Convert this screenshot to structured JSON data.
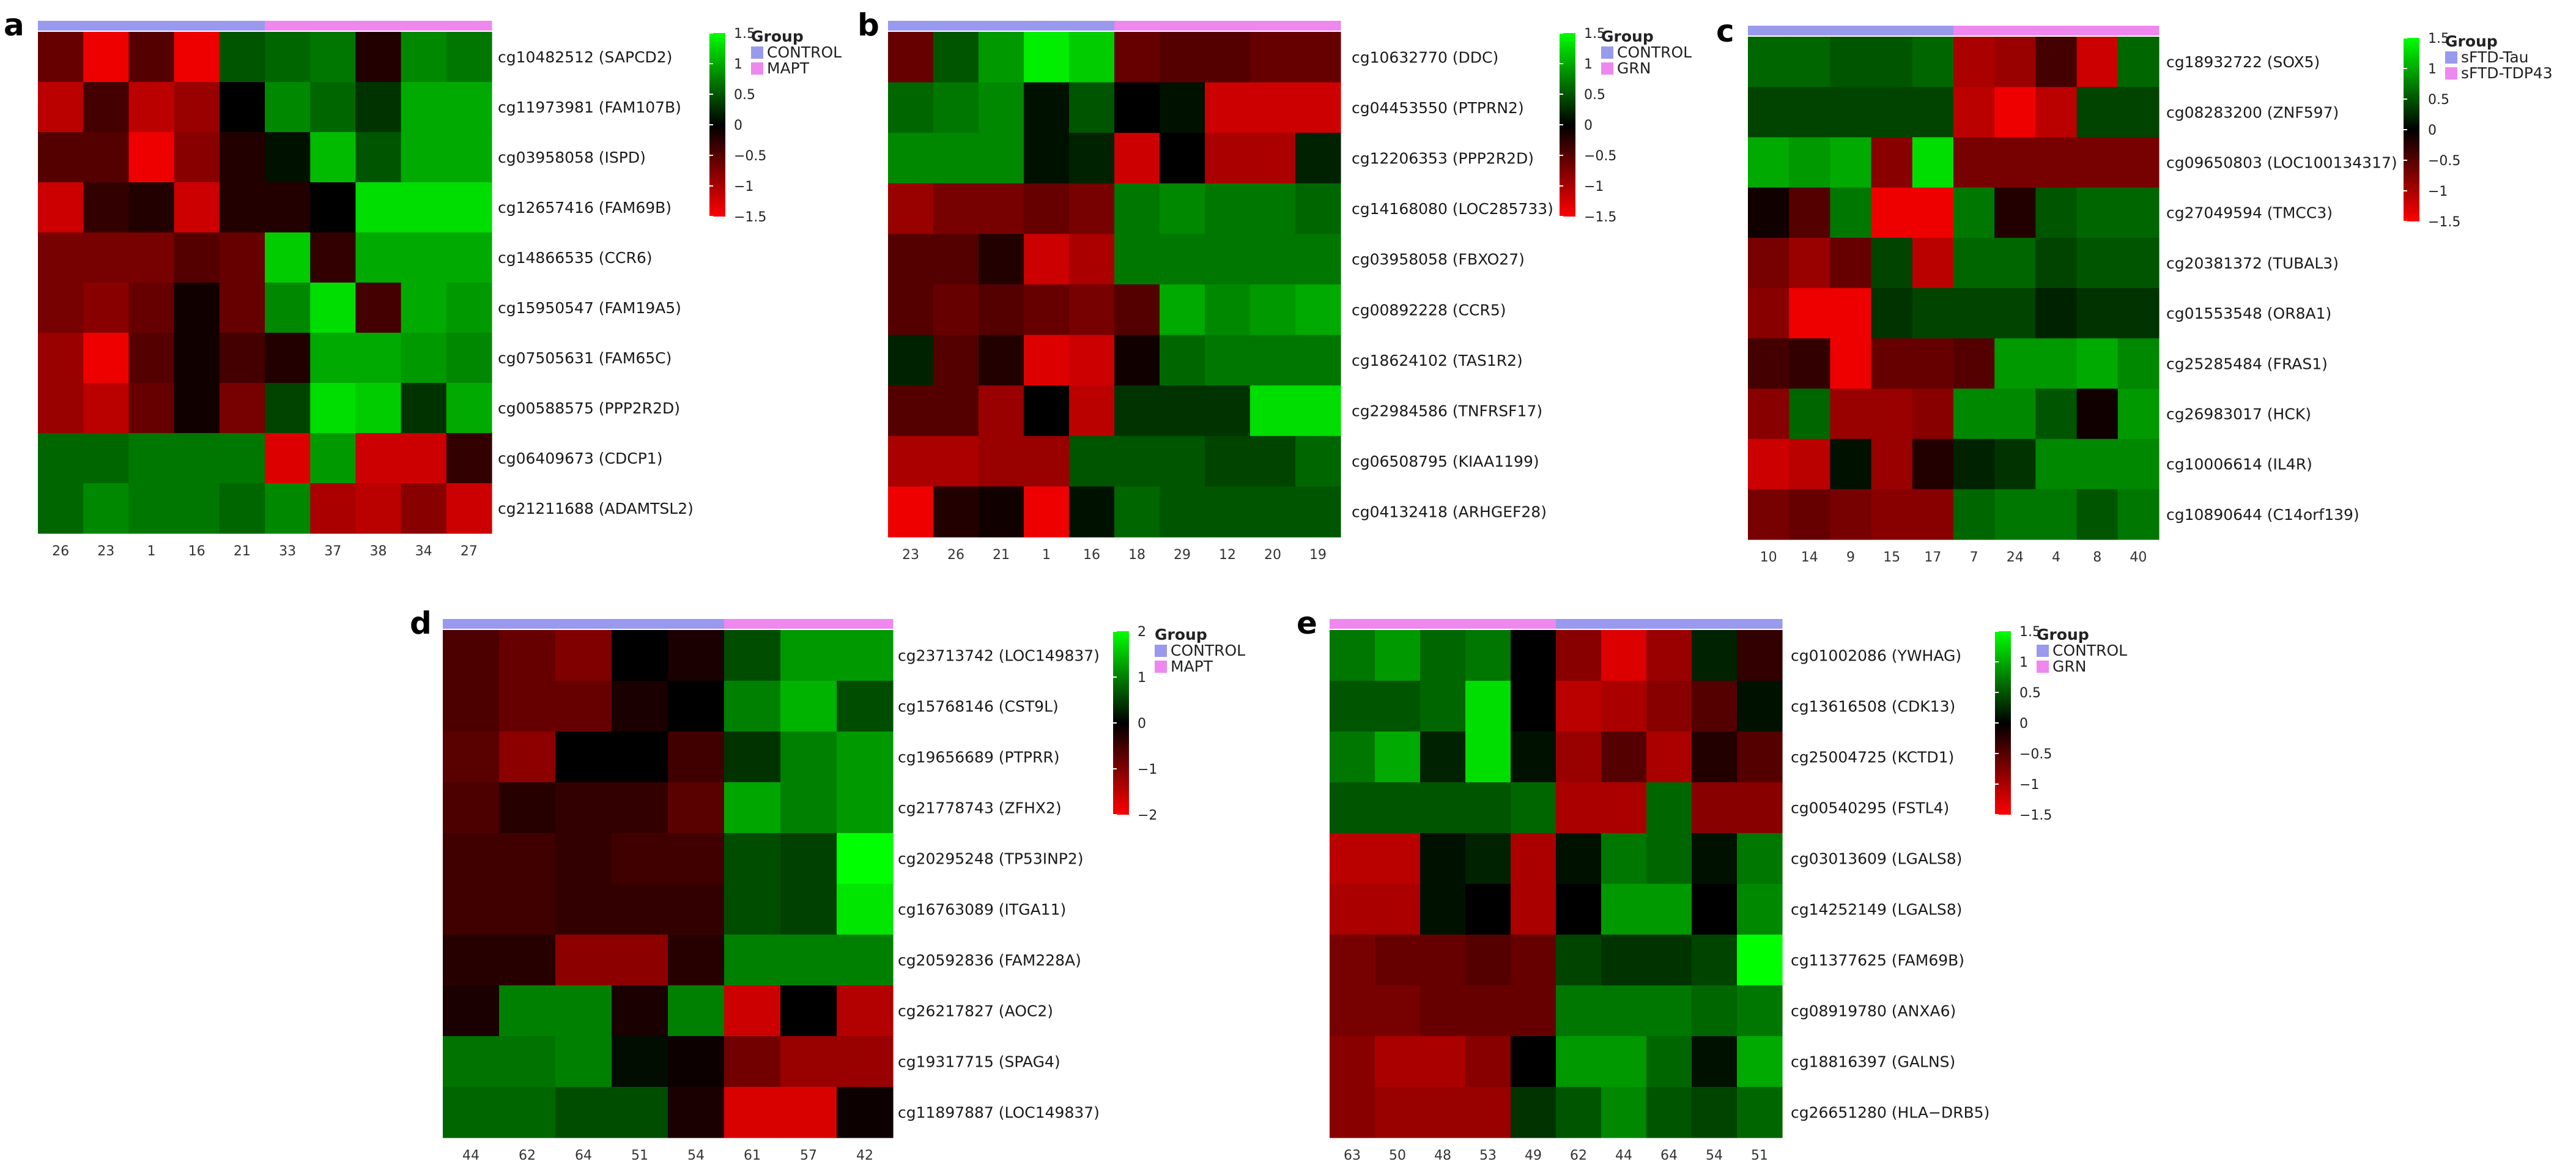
{
  "palette": {
    "low": "#ff0000",
    "mid": "#000000",
    "high": "#00ff00",
    "control": "#9999ee",
    "case": "#ee88ee"
  },
  "chart_data": [
    {
      "panel": "a",
      "type": "heatmap",
      "legend": {
        "title": "Group",
        "entries": [
          "CONTROL",
          "MAPT"
        ]
      },
      "colorbar": {
        "min": -1.5,
        "max": 1.5,
        "ticks": [
          "1.5",
          "1",
          "0.5",
          "0",
          "−0.5",
          "−1",
          "−1.5"
        ]
      },
      "columns": [
        "26",
        "23",
        "1",
        "16",
        "21",
        "33",
        "37",
        "38",
        "34",
        "27"
      ],
      "column_groups": [
        "CONTROL",
        "CONTROL",
        "CONTROL",
        "CONTROL",
        "CONTROL",
        "MAPT",
        "MAPT",
        "MAPT",
        "MAPT",
        "MAPT"
      ],
      "rows": [
        "cg10482512 (SAPCD2)",
        "cg11973981 (FAM107B)",
        "cg03958058 (ISPD)",
        "cg12657416 (FAM69B)",
        "cg14866535 (CCR6)",
        "cg15950547 (FAM19A5)",
        "cg07505631 (FAM65C)",
        "cg00588575 (PPP2R2D)",
        "cg06409673 (CDCP1)",
        "cg21211688 (ADAMTSL2)"
      ],
      "values": [
        [
          -0.6,
          -1.4,
          -0.5,
          -1.4,
          0.5,
          0.6,
          0.7,
          -0.2,
          0.8,
          0.7
        ],
        [
          -1.1,
          -0.4,
          -1.1,
          -0.9,
          0,
          0.8,
          0.6,
          0.3,
          1.0,
          1.0
        ],
        [
          -0.5,
          -0.5,
          -1.4,
          -0.8,
          -0.2,
          0.1,
          1.1,
          0.5,
          1.0,
          1.0
        ],
        [
          -1.2,
          -0.3,
          -0.2,
          -1.2,
          -0.2,
          -0.2,
          0,
          1.3,
          1.3,
          1.3
        ],
        [
          -0.7,
          -0.7,
          -0.7,
          -0.5,
          -0.6,
          1.2,
          -0.3,
          1.0,
          1.0,
          1.0
        ],
        [
          -0.7,
          -0.8,
          -0.6,
          -0.1,
          -0.6,
          0.8,
          1.3,
          -0.4,
          1.0,
          0.9
        ],
        [
          -0.9,
          -1.4,
          -0.5,
          -0.1,
          -0.4,
          -0.2,
          1.0,
          1.0,
          0.9,
          0.8
        ],
        [
          -0.9,
          -1.1,
          -0.6,
          -0.1,
          -0.7,
          0.4,
          1.3,
          1.2,
          0.3,
          1.0
        ],
        [
          0.6,
          0.6,
          0.7,
          0.7,
          0.7,
          -1.3,
          0.9,
          -1.2,
          -1.2,
          -0.3
        ],
        [
          0.6,
          0.8,
          0.7,
          0.7,
          0.6,
          0.8,
          -1.0,
          -1.1,
          -0.8,
          -1.2
        ]
      ]
    },
    {
      "panel": "b",
      "type": "heatmap",
      "legend": {
        "title": "Group",
        "entries": [
          "CONTROL",
          "GRN"
        ]
      },
      "colorbar": {
        "min": -1.5,
        "max": 1.5,
        "ticks": [
          "1.5",
          "1",
          "0.5",
          "0",
          "−0.5",
          "−1",
          "−1.5"
        ]
      },
      "columns": [
        "23",
        "26",
        "21",
        "1",
        "16",
        "18",
        "29",
        "12",
        "20",
        "19"
      ],
      "column_groups": [
        "CONTROL",
        "CONTROL",
        "CONTROL",
        "CONTROL",
        "CONTROL",
        "GRN",
        "GRN",
        "GRN",
        "GRN",
        "GRN"
      ],
      "rows": [
        "cg10632770 (DDC)",
        "cg04453550 (PTPRN2)",
        "cg12206353 (PPP2R2D)",
        "cg14168080 (LOC285733)",
        "cg03958058 (FBXO27)",
        "cg00892228 (CCR5)",
        "cg18624102 (TAS1R2)",
        "cg22984586 (TNFRSF17)",
        "cg06508795 (KIAA1199)",
        "cg04132418 (ARHGEF28)"
      ],
      "values": [
        [
          -0.6,
          0.5,
          0.9,
          1.4,
          1.2,
          -0.6,
          -0.5,
          -0.5,
          -0.6,
          -0.6
        ],
        [
          0.6,
          0.7,
          0.8,
          0.1,
          0.5,
          0,
          0.1,
          -1.2,
          -1.2,
          -1.2
        ],
        [
          0.8,
          0.8,
          0.8,
          0.1,
          0.2,
          -1.2,
          0,
          -1.0,
          -1.0,
          0.2
        ],
        [
          -0.9,
          -0.7,
          -0.7,
          -0.6,
          -0.7,
          0.7,
          0.8,
          0.7,
          0.7,
          0.6
        ],
        [
          -0.5,
          -0.5,
          -0.2,
          -1.2,
          -1.0,
          0.7,
          0.7,
          0.7,
          0.7,
          0.7
        ],
        [
          -0.5,
          -0.6,
          -0.5,
          -0.6,
          -0.7,
          -0.5,
          1.0,
          0.8,
          0.9,
          1.0
        ],
        [
          0.2,
          -0.5,
          -0.2,
          -1.3,
          -1.2,
          -0.1,
          0.6,
          0.7,
          0.7,
          0.7
        ],
        [
          -0.5,
          -0.5,
          -0.9,
          0,
          -1.1,
          0.3,
          0.3,
          0.3,
          1.3,
          1.3
        ],
        [
          -1.0,
          -1.0,
          -0.9,
          -0.9,
          0.5,
          0.5,
          0.5,
          0.4,
          0.4,
          0.6
        ],
        [
          -1.4,
          -0.2,
          -0.1,
          -1.4,
          0.1,
          0.6,
          0.5,
          0.5,
          0.5,
          0.5
        ]
      ]
    },
    {
      "panel": "c",
      "type": "heatmap",
      "legend": {
        "title": "Group",
        "entries": [
          "sFTD-Tau",
          "sFTD-TDP43"
        ]
      },
      "colorbar": {
        "min": -1.5,
        "max": 1.5,
        "ticks": [
          "1.5",
          "1",
          "0.5",
          "0",
          "−0.5",
          "−1",
          "−1.5"
        ]
      },
      "columns": [
        "10",
        "14",
        "9",
        "15",
        "17",
        "7",
        "24",
        "4",
        "8",
        "40"
      ],
      "column_groups": [
        "sFTD-Tau",
        "sFTD-Tau",
        "sFTD-Tau",
        "sFTD-Tau",
        "sFTD-Tau",
        "sFTD-TDP43",
        "sFTD-TDP43",
        "sFTD-TDP43",
        "sFTD-TDP43",
        "sFTD-TDP43"
      ],
      "rows": [
        "cg18932722 (SOX5)",
        "cg08283200 (ZNF597)",
        "cg09650803 (LOC100134317)",
        "cg27049594 (TMCC3)",
        "cg20381372 (TUBAL3)",
        "cg01553548 (OR8A1)",
        "cg25285484 (FRAS1)",
        "cg26983017 (HCK)",
        "cg10006614 (IL4R)",
        "cg10890644 (C14orf139)"
      ],
      "values": [
        [
          0.6,
          0.6,
          0.5,
          0.5,
          0.6,
          -1.0,
          -0.9,
          -0.4,
          -1.2,
          0.6
        ],
        [
          0.4,
          0.4,
          0.4,
          0.4,
          0.4,
          -1.1,
          -1.4,
          -1.1,
          0.4,
          0.4
        ],
        [
          1.0,
          0.9,
          1.0,
          -0.8,
          1.3,
          -0.7,
          -0.7,
          -0.7,
          -0.7,
          -0.7
        ],
        [
          -0.1,
          -0.5,
          0.7,
          -1.4,
          -1.4,
          0.7,
          -0.2,
          0.5,
          0.6,
          0.6
        ],
        [
          -0.7,
          -0.9,
          -0.6,
          0.4,
          -1.1,
          0.6,
          0.6,
          0.4,
          0.5,
          0.5
        ],
        [
          -0.8,
          -1.4,
          -1.4,
          0.3,
          0.4,
          0.4,
          0.4,
          0.2,
          0.3,
          0.3
        ],
        [
          -0.4,
          -0.3,
          -1.4,
          -0.6,
          -0.6,
          -0.5,
          0.9,
          0.9,
          1.0,
          0.8
        ],
        [
          -0.8,
          0.6,
          -0.9,
          -0.9,
          -0.8,
          0.8,
          0.8,
          0.5,
          -0.1,
          0.9
        ],
        [
          -1.2,
          -1.1,
          0.1,
          -0.9,
          -0.2,
          0.2,
          0.3,
          0.8,
          0.8,
          0.8
        ],
        [
          -0.7,
          -0.6,
          -0.7,
          -0.8,
          -0.8,
          0.6,
          0.7,
          0.7,
          0.5,
          0.7
        ]
      ]
    },
    {
      "panel": "d",
      "type": "heatmap",
      "legend": {
        "title": "Group",
        "entries": [
          "CONTROL",
          "MAPT"
        ]
      },
      "colorbar": {
        "min": -2,
        "max": 2,
        "ticks": [
          "2",
          "1",
          "0",
          "−1",
          "−2"
        ]
      },
      "columns": [
        "44",
        "62",
        "64",
        "51",
        "54",
        "61",
        "57",
        "42"
      ],
      "column_groups": [
        "CONTROL",
        "CONTROL",
        "CONTROL",
        "CONTROL",
        "CONTROL",
        "MAPT",
        "MAPT",
        "MAPT"
      ],
      "rows": [
        "cg23713742 (LOC149837)",
        "cg15768146 (CST9L)",
        "cg19656689 (PTPRR)",
        "cg21778743 (ZFHX2)",
        "cg20295248 (TP53INP2)",
        "cg16763089 (ITGA11)",
        "cg20592836 (FAM228A)",
        "cg26217827 (AOC2)",
        "cg19317715 (SPAG4)",
        "cg11897887 (LOC149837)"
      ],
      "values": [
        [
          -0.6,
          -0.8,
          -1.0,
          0,
          -0.2,
          0.6,
          1.2,
          1.2
        ],
        [
          -0.6,
          -0.8,
          -0.8,
          -0.2,
          0,
          1.0,
          1.4,
          0.6
        ],
        [
          -0.7,
          -1.1,
          0,
          0,
          -0.5,
          0.4,
          1.0,
          1.2
        ],
        [
          -0.6,
          -0.3,
          -0.4,
          -0.4,
          -0.7,
          1.3,
          1.0,
          1.2
        ],
        [
          -0.5,
          -0.5,
          -0.4,
          -0.5,
          -0.5,
          0.6,
          0.5,
          2.0
        ],
        [
          -0.5,
          -0.5,
          -0.4,
          -0.4,
          -0.4,
          0.6,
          0.5,
          1.8
        ],
        [
          -0.3,
          -0.3,
          -1.1,
          -1.1,
          -0.3,
          1.0,
          1.0,
          1.0
        ],
        [
          -0.2,
          1.0,
          1.0,
          -0.2,
          1.0,
          -1.6,
          0,
          -1.4
        ],
        [
          0.9,
          0.9,
          1.0,
          0.1,
          -0.1,
          -0.9,
          -1.2,
          -1.2
        ],
        [
          0.8,
          0.8,
          0.6,
          0.6,
          -0.2,
          -1.7,
          -1.7,
          -0.1
        ]
      ]
    },
    {
      "panel": "e",
      "type": "heatmap",
      "legend": {
        "title": "Group",
        "entries": [
          "CONTROL",
          "GRN"
        ]
      },
      "colorbar": {
        "min": -1.5,
        "max": 1.5,
        "ticks": [
          "1.5",
          "1",
          "0.5",
          "0",
          "−0.5",
          "−1",
          "−1.5"
        ]
      },
      "columns": [
        "63",
        "50",
        "48",
        "53",
        "49",
        "62",
        "44",
        "64",
        "54",
        "51"
      ],
      "column_groups": [
        "GRN",
        "GRN",
        "GRN",
        "GRN",
        "GRN",
        "CONTROL",
        "CONTROL",
        "CONTROL",
        "CONTROL",
        "CONTROL"
      ],
      "rows": [
        "cg01002086 (YWHAG)",
        "cg13616508 (CDK13)",
        "cg25004725 (KCTD1)",
        "cg00540295 (FSTL4)",
        "cg03013609 (LGALS8)",
        "cg14252149 (LGALS8)",
        "cg11377625 (FAM69B)",
        "cg08919780 (ANXA6)",
        "cg18816397 (GALNS)",
        "cg26651280 (HLA−DRB5)"
      ],
      "values": [
        [
          0.7,
          0.9,
          0.6,
          0.7,
          0,
          -0.8,
          -1.3,
          -0.9,
          0.2,
          -0.3
        ],
        [
          0.5,
          0.5,
          0.6,
          1.3,
          0,
          -1.1,
          -1.0,
          -0.8,
          -0.5,
          0.1
        ],
        [
          0.7,
          1.0,
          0.2,
          1.3,
          0.1,
          -0.9,
          -0.5,
          -1.0,
          -0.2,
          -0.5
        ],
        [
          0.5,
          0.5,
          0.5,
          0.5,
          0.6,
          -1.0,
          -1.0,
          0.6,
          -0.8,
          -0.8
        ],
        [
          -1.1,
          -1.1,
          0.1,
          0.2,
          -1.0,
          0.1,
          0.7,
          0.6,
          0.1,
          0.7
        ],
        [
          -1.0,
          -1.0,
          0.1,
          0,
          -1.0,
          0,
          0.9,
          0.9,
          0,
          0.8
        ],
        [
          -0.7,
          -0.6,
          -0.6,
          -0.5,
          -0.6,
          0.4,
          0.3,
          0.3,
          0.4,
          1.5
        ],
        [
          -0.7,
          -0.7,
          -0.6,
          -0.6,
          -0.6,
          0.7,
          0.7,
          0.7,
          0.6,
          0.7
        ],
        [
          -0.8,
          -1.0,
          -1.0,
          -0.8,
          0,
          0.9,
          0.9,
          0.6,
          0.1,
          1.0
        ],
        [
          -0.8,
          -0.9,
          -0.9,
          -0.9,
          0.3,
          0.5,
          0.8,
          0.5,
          0.4,
          0.6
        ]
      ]
    }
  ]
}
